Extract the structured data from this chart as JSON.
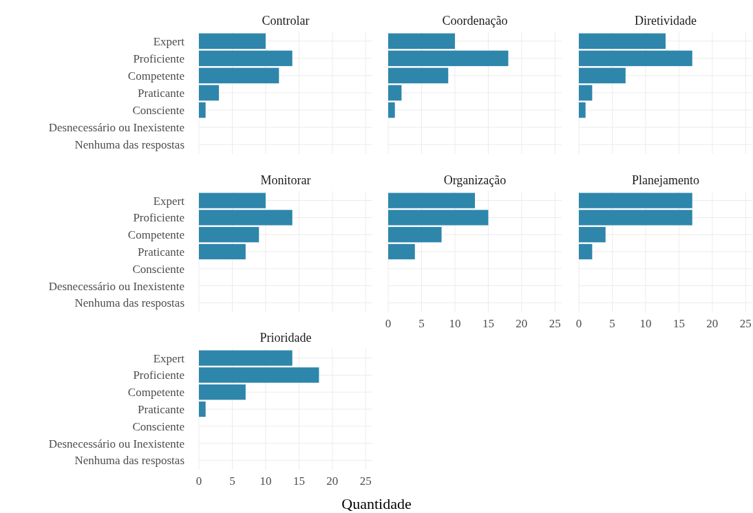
{
  "chart_data": [
    {
      "type": "bar",
      "orientation": "horizontal",
      "title": "Controlar",
      "categories": [
        "Expert",
        "Proficiente",
        "Competente",
        "Praticante",
        "Consciente",
        "Desnecessário ou Inexistente",
        "Nenhuma das respostas"
      ],
      "values": [
        10,
        14,
        12,
        3,
        1,
        null,
        null
      ],
      "color": "#2e86ab",
      "xlim": [
        0,
        26
      ],
      "xticks": [
        0,
        5,
        10,
        15,
        20,
        25
      ],
      "grid": true,
      "tick_labels": "y"
    },
    {
      "type": "bar",
      "orientation": "horizontal",
      "title": "Coordenação",
      "categories": [
        null,
        null,
        null,
        null,
        null,
        null,
        null
      ],
      "values": [
        10,
        18,
        9,
        2,
        1,
        null,
        null
      ],
      "color": "#2e86ab",
      "xlim": [
        0,
        26
      ],
      "xticks": [
        0,
        5,
        10,
        15,
        20,
        25
      ],
      "grid": true,
      "tick_labels": false
    },
    {
      "type": "bar",
      "orientation": "horizontal",
      "title": "Diretividade",
      "categories": [
        null,
        null,
        null,
        null,
        null,
        null,
        null
      ],
      "values": [
        13,
        17,
        7,
        2,
        1,
        null,
        null
      ],
      "color": "#2e86ab",
      "xlim": [
        0,
        26
      ],
      "xticks": [
        0,
        5,
        10,
        15,
        20,
        25
      ],
      "grid": true,
      "tick_labels": false
    },
    {
      "type": "bar",
      "orientation": "horizontal",
      "title": "Monitorar",
      "categories": [
        "Expert",
        "Proficiente",
        "Competente",
        "Praticante",
        "Consciente",
        "Desnecessário ou Inexistente",
        "Nenhuma das respostas"
      ],
      "values": [
        10,
        14,
        9,
        7,
        null,
        null,
        null
      ],
      "color": "#2e86ab",
      "xlim": [
        0,
        26
      ],
      "xticks": [
        0,
        5,
        10,
        15,
        20,
        25
      ],
      "grid": true,
      "tick_labels": "y"
    },
    {
      "type": "bar",
      "orientation": "horizontal",
      "title": "Organização",
      "categories": [
        null,
        null,
        null,
        null,
        null,
        null,
        null
      ],
      "values": [
        13,
        15,
        8,
        4,
        null,
        null,
        null
      ],
      "color": "#2e86ab",
      "xlim": [
        0,
        26
      ],
      "xticks": [
        0,
        5,
        10,
        15,
        20,
        25
      ],
      "grid": true,
      "tick_labels": "x"
    },
    {
      "type": "bar",
      "orientation": "horizontal",
      "title": "Planejamento",
      "categories": [
        null,
        null,
        null,
        null,
        null,
        null,
        null
      ],
      "values": [
        17,
        17,
        4,
        2,
        null,
        null,
        null
      ],
      "color": "#2e86ab",
      "xlim": [
        0,
        26
      ],
      "xticks": [
        0,
        5,
        10,
        15,
        20,
        25
      ],
      "grid": true,
      "tick_labels": "x"
    },
    {
      "type": "bar",
      "orientation": "horizontal",
      "title": "Prioridade",
      "xlabel": "Quantidade",
      "categories": [
        "Expert",
        "Proficiente",
        "Competente",
        "Praticante",
        "Consciente",
        "Desnecessário ou Inexistente",
        "Nenhuma das respostas"
      ],
      "values": [
        14,
        18,
        7,
        1,
        null,
        null,
        null
      ],
      "color": "#2e86ab",
      "xlim": [
        0,
        26
      ],
      "xticks": [
        0,
        5,
        10,
        15,
        20,
        25
      ],
      "grid": true
    }
  ]
}
